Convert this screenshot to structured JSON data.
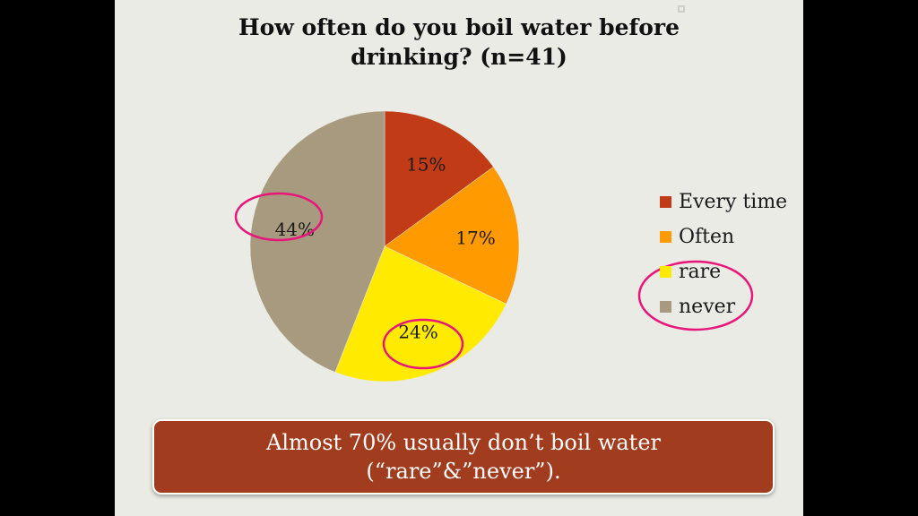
{
  "slide": {
    "title_line1": "How often do you boil water before",
    "title_line2": "drinking? (n=41)",
    "banner_line1": "Almost 70% usually don’t boil water",
    "banner_line2": "(“rare”&”never”)."
  },
  "chart_data": {
    "type": "pie",
    "title": "How often do you boil water before drinking? (n=41)",
    "categories": [
      "Every time",
      "Often",
      "rare",
      "never"
    ],
    "values": [
      15,
      17,
      24,
      44
    ],
    "labels": [
      "15%",
      "17%",
      "24%",
      "44%"
    ],
    "colors": [
      "#c23b17",
      "#ff9a00",
      "#ffea00",
      "#a89a7e"
    ],
    "legend_position": "right",
    "highlighted": [
      "never",
      "rare"
    ],
    "highlight_color": "#e8157a"
  }
}
